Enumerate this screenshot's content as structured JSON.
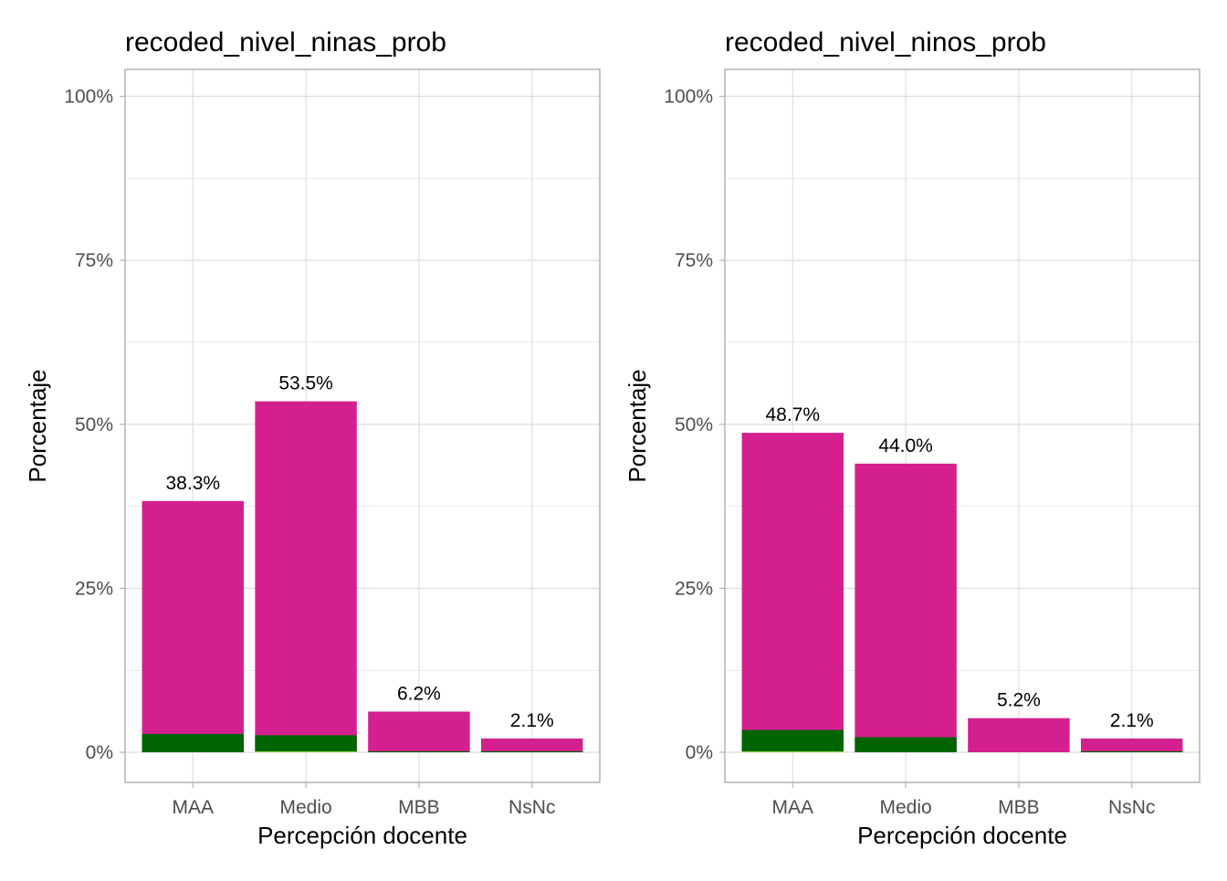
{
  "colors": {
    "main": "#d4208f",
    "dark_green": "#006400",
    "yellow_green": "#9acd32",
    "grid": "#dedede",
    "panel_border": "#b3b3b3"
  },
  "chart_data": [
    {
      "type": "bar",
      "title": "recoded_nivel_ninas_prob",
      "xlabel": "Percepción docente",
      "ylabel": "Porcentaje",
      "categories": [
        "MAA",
        "Medio",
        "MBB",
        "NsNc"
      ],
      "ylim": [
        0,
        100
      ],
      "y_ticks": [
        0,
        25,
        50,
        75,
        100
      ],
      "y_tick_labels": [
        "0%",
        "25%",
        "50%",
        "75%",
        "100%"
      ],
      "grid": true,
      "series": [
        {
          "values": [
            38.3,
            53.5,
            6.2,
            2.1
          ],
          "color": "#d4208f"
        },
        {
          "values": [
            2.8,
            2.6,
            0.15,
            0.15
          ],
          "color": "#006400"
        },
        {
          "values": [
            0.0,
            0.15,
            0.0,
            0.0
          ],
          "color": "#9acd32"
        }
      ],
      "data_labels": [
        "38.3%",
        "53.5%",
        "6.2%",
        "2.1%"
      ]
    },
    {
      "type": "bar",
      "title": "recoded_nivel_ninos_prob",
      "xlabel": "Percepción docente",
      "ylabel": "Porcentaje",
      "categories": [
        "MAA",
        "Medio",
        "MBB",
        "NsNc"
      ],
      "ylim": [
        0,
        100
      ],
      "y_ticks": [
        0,
        25,
        50,
        75,
        100
      ],
      "y_tick_labels": [
        "0%",
        "25%",
        "50%",
        "75%",
        "100%"
      ],
      "grid": true,
      "series": [
        {
          "values": [
            48.7,
            44.0,
            5.2,
            2.1
          ],
          "color": "#d4208f"
        },
        {
          "values": [
            3.4,
            2.3,
            0.0,
            0.15
          ],
          "color": "#006400"
        },
        {
          "values": [
            0.15,
            0.0,
            0.0,
            0.0
          ],
          "color": "#9acd32"
        }
      ],
      "data_labels": [
        "48.7%",
        "44.0%",
        "5.2%",
        "2.1%"
      ]
    }
  ]
}
